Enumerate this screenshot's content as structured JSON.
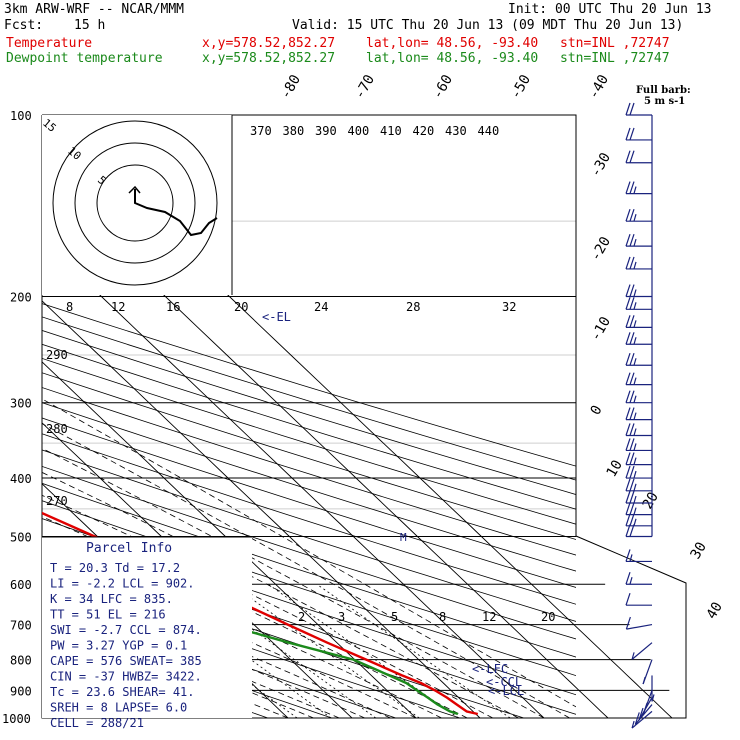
{
  "header": {
    "model": "3km ARW-WRF -- NCAR/MMM",
    "init": "Init: 00 UTC Thu 20 Jun 13",
    "fcst_label": "Fcst:",
    "fcst_value": "15 h",
    "valid": "Valid: 15 UTC Thu 20 Jun 13 (09 MDT Thu 20 Jun 13)",
    "temp_label": "Temperature",
    "dew_label": "Dewpoint temperature",
    "xy": "x,y=578.52,852.27",
    "latlon": "lat,lon= 48.56, -93.40",
    "stn": "stn=INL ,72747"
  },
  "colors": {
    "temperature": "#e00000",
    "dewpoint": "#1b8a1b",
    "wind_barb": "#1a237e",
    "parcel_text": "#1a237e"
  },
  "chart_data": {
    "type": "line",
    "subtype": "skew-T log-P sounding",
    "y_axis": {
      "label": "Pressure (hPa)",
      "scale": "log",
      "reversed": true,
      "ylim": [
        1000,
        100
      ],
      "ticks": [
        100,
        200,
        300,
        400,
        500,
        600,
        700,
        800,
        900,
        1000
      ]
    },
    "x_axis": {
      "label": "Temperature (C)",
      "skewed": true
    },
    "temperature_tick_labels": [
      "-80",
      "-70",
      "-60",
      "-50",
      "-40",
      "-30",
      "-20",
      "-10",
      "0",
      "10",
      "20",
      "30",
      "40"
    ],
    "theta_e_labels": [
      "370",
      "380",
      "390",
      "400",
      "410",
      "420",
      "430",
      "440"
    ],
    "mixing_ratio_labels": [
      "2",
      "3",
      "5",
      "8",
      "12",
      "20"
    ],
    "theta_labels_left": [
      "290",
      "280",
      "270"
    ],
    "hodograph": {
      "speed_unit": "kts",
      "ring_labels": [
        "5",
        "10",
        "15"
      ],
      "axis_labels": [
        "8",
        "12",
        "16",
        "20",
        "24",
        "28",
        "32"
      ],
      "trace": [
        [
          -1,
          4
        ],
        [
          0,
          0
        ],
        [
          3,
          -1
        ],
        [
          6,
          -2
        ],
        [
          8,
          -4
        ],
        [
          10,
          -5
        ],
        [
          12,
          -4
        ],
        [
          14,
          -2
        ],
        [
          15,
          -1
        ]
      ]
    },
    "series": [
      {
        "name": "Temperature",
        "color": "#e00000",
        "p": [
          985,
          975,
          950,
          925,
          900,
          875,
          850,
          800,
          750,
          700,
          650,
          600,
          550,
          500,
          450,
          400,
          350,
          300,
          250,
          225,
          210,
          200,
          190,
          175,
          150,
          125,
          110,
          100
        ],
        "t": [
          20.3,
          19,
          18.6,
          18.2,
          17.5,
          16.5,
          14.8,
          11.8,
          8.5,
          5.3,
          2,
          -1.7,
          -5.8,
          -10.4,
          -15.6,
          -21.5,
          -28.3,
          -36.5,
          -46,
          -51.6,
          -55,
          -57,
          -57.5,
          -56.5,
          -53,
          -52,
          -50,
          -49
        ]
      },
      {
        "name": "Dewpoint temperature",
        "color": "#1b8a1b",
        "p": [
          985,
          975,
          950,
          925,
          900,
          875,
          850,
          800,
          750,
          700,
          650,
          600,
          550,
          500,
          450,
          425,
          400,
          375,
          350,
          300,
          275,
          250,
          225,
          210,
          200,
          190,
          175,
          150,
          125,
          110,
          100
        ],
        "t": [
          17.2,
          16.4,
          15.6,
          15.2,
          14.7,
          14.2,
          12.8,
          9.8,
          2.5,
          -4.5,
          -12,
          -19,
          -26,
          -34,
          -50,
          -51,
          -48,
          -50,
          -50,
          -60,
          -57,
          -58,
          -60,
          -62,
          -63,
          -62,
          -61,
          -63,
          -65,
          -67,
          -68
        ]
      }
    ],
    "level_markers": [
      {
        "p": 216,
        "label": "<-EL"
      },
      {
        "p": 835,
        "label": "<-LFC"
      },
      {
        "p": 874,
        "label": "<-CCL"
      },
      {
        "p": 902,
        "label": "<-LCL"
      }
    ],
    "wind_barbs": {
      "title": "Full barb:",
      "unit": "5 m s-1",
      "p": [
        100,
        110,
        120,
        135,
        150,
        165,
        180,
        200,
        210,
        225,
        240,
        260,
        280,
        300,
        320,
        340,
        360,
        380,
        400,
        420,
        440,
        460,
        480,
        500,
        550,
        600,
        650,
        700,
        750,
        800,
        850,
        900,
        925,
        950,
        975
      ],
      "speed_ms": [
        20,
        20,
        20,
        25,
        25,
        25,
        25,
        25,
        25,
        25,
        25,
        25,
        25,
        25,
        25,
        25,
        25,
        25,
        25,
        25,
        25,
        25,
        25,
        20,
        15,
        15,
        10,
        10,
        5,
        5,
        5,
        10,
        10,
        10,
        5
      ],
      "dir_deg": [
        270,
        270,
        270,
        270,
        270,
        270,
        270,
        270,
        270,
        270,
        270,
        270,
        270,
        270,
        270,
        270,
        270,
        270,
        270,
        270,
        270,
        270,
        270,
        270,
        270,
        270,
        270,
        260,
        230,
        200,
        180,
        200,
        210,
        220,
        230
      ]
    },
    "parcel_info": {
      "title": "Parcel Info",
      "rows": [
        "T  =    20.3  Td =  17.2",
        "LI =    -2.2  LCL =  902.",
        "K  =      34  LFC =  835.",
        "TT =      51  EL  =  216",
        "SWI =   -2.7  CCL =  874.",
        "PW =    3.27  YGP =   0.1",
        "CAPE =   576  SWEAT=  385",
        "CIN =    -37  HWBZ= 3422.",
        "Tc =    23.6  SHEAR=  41.",
        "SREH =     8  LAPSE=  6.0",
        "CELL = 288/21"
      ]
    }
  }
}
